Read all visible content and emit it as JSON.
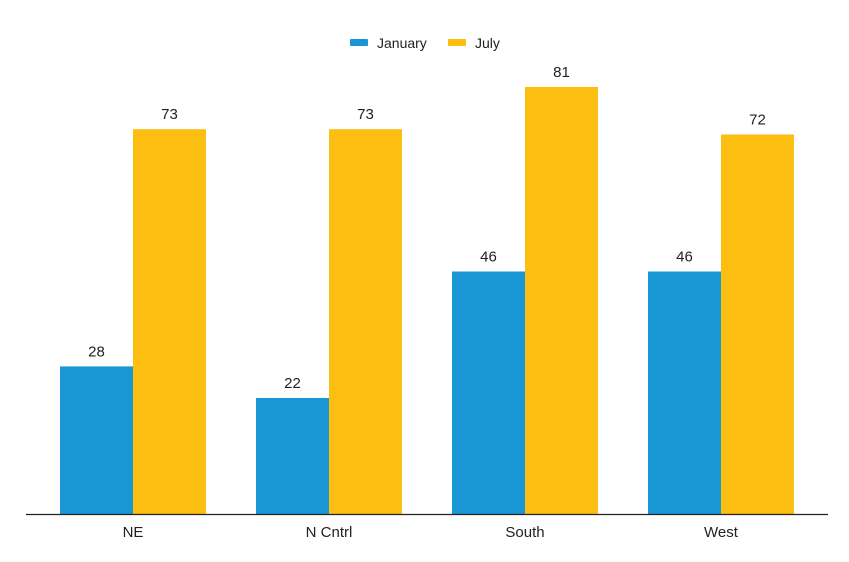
{
  "chart_data": {
    "type": "bar",
    "categories": [
      "NE",
      "N Cntrl",
      "South",
      "West"
    ],
    "series": [
      {
        "name": "January",
        "values": [
          28,
          22,
          46,
          46
        ],
        "color": "#1996D4"
      },
      {
        "name": "July",
        "values": [
          73,
          73,
          81,
          72
        ],
        "color": "#FDBE12"
      }
    ],
    "title": "",
    "xlabel": "",
    "ylabel": "",
    "ylim": [
      0,
      81
    ],
    "grid": false,
    "legend_position": "top-center",
    "data_labels": true,
    "axis_color": "#222222"
  }
}
